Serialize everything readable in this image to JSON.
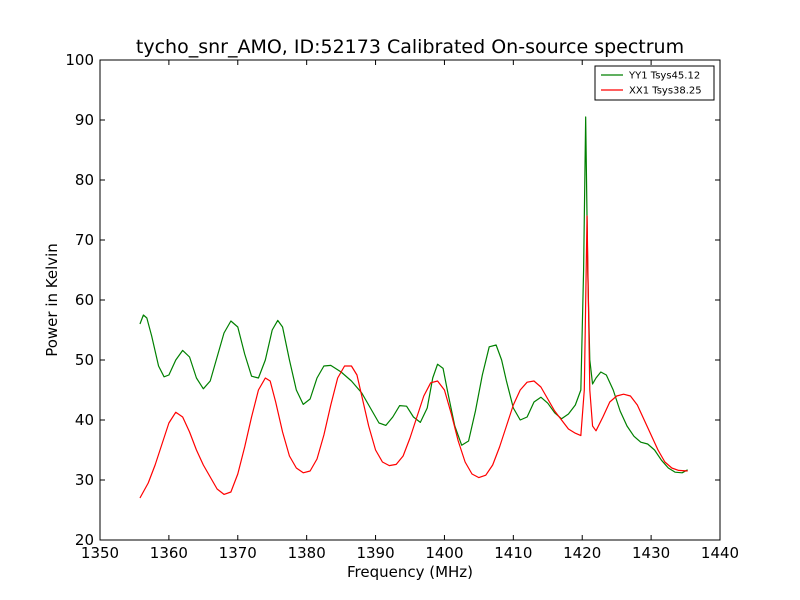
{
  "chart_data": {
    "type": "line",
    "title": "tycho_snr_AMO, ID:52173 Calibrated On-source spectrum",
    "xlabel": "Frequency (MHz)",
    "ylabel": "Power in Kelvin",
    "xlim": [
      1350,
      1440
    ],
    "ylim": [
      20,
      100
    ],
    "xticks": [
      "1350",
      "1360",
      "1370",
      "1380",
      "1390",
      "1400",
      "1410",
      "1420",
      "1430",
      "1440"
    ],
    "yticks": [
      "20",
      "30",
      "40",
      "50",
      "60",
      "70",
      "80",
      "90",
      "100"
    ],
    "grid": false,
    "legend_position": "top-right",
    "series": [
      {
        "name": "YY1 Tsys45.12",
        "color": "#008000",
        "x": [
          1355.8,
          1356.3,
          1356.8,
          1357.5,
          1358.5,
          1359.3,
          1360.0,
          1361.0,
          1362.0,
          1363.0,
          1364.0,
          1365.0,
          1366.0,
          1367.0,
          1368.0,
          1369.0,
          1370.0,
          1371.0,
          1372.0,
          1373.0,
          1374.0,
          1375.0,
          1375.8,
          1376.5,
          1377.5,
          1378.5,
          1379.5,
          1380.5,
          1381.5,
          1382.5,
          1383.5,
          1385.0,
          1386.5,
          1388.0,
          1389.5,
          1390.5,
          1391.5,
          1392.5,
          1393.5,
          1394.5,
          1395.5,
          1396.5,
          1397.5,
          1398.3,
          1399.0,
          1399.8,
          1400.5,
          1401.5,
          1402.5,
          1403.5,
          1404.5,
          1405.5,
          1406.5,
          1407.5,
          1408.3,
          1409.0,
          1410.0,
          1411.0,
          1412.0,
          1413.0,
          1414.0,
          1415.0,
          1416.0,
          1417.0,
          1418.0,
          1419.0,
          1419.8,
          1420.2,
          1420.5,
          1420.8,
          1421.1,
          1421.5,
          1422.0,
          1422.7,
          1423.5,
          1424.5,
          1425.5,
          1426.5,
          1427.5,
          1428.5,
          1429.5,
          1430.5,
          1431.5,
          1432.5,
          1433.5,
          1434.5,
          1435.3
        ],
        "values": [
          56.0,
          57.5,
          57.0,
          54.0,
          49.0,
          47.2,
          47.5,
          50.0,
          51.6,
          50.5,
          47.0,
          45.2,
          46.5,
          50.5,
          54.5,
          56.5,
          55.5,
          51.0,
          47.3,
          47.0,
          50.0,
          55.0,
          56.6,
          55.5,
          50.0,
          45.0,
          42.6,
          43.5,
          47.0,
          49.0,
          49.1,
          48.0,
          46.5,
          44.5,
          41.5,
          39.5,
          39.1,
          40.5,
          42.4,
          42.3,
          40.5,
          39.6,
          42.0,
          47.0,
          49.3,
          48.6,
          44.5,
          39.0,
          35.8,
          36.5,
          41.5,
          47.5,
          52.2,
          52.5,
          50.0,
          46.5,
          42.0,
          40.0,
          40.5,
          43.0,
          43.8,
          42.8,
          41.2,
          40.2,
          41.0,
          42.5,
          45.0,
          65.0,
          90.5,
          65.0,
          50.0,
          46.0,
          47.0,
          48.0,
          47.5,
          45.0,
          41.5,
          39.0,
          37.3,
          36.3,
          36.0,
          35.0,
          33.3,
          32.0,
          31.3,
          31.2,
          31.7
        ]
      },
      {
        "name": "XX1 Tsys38.25",
        "color": "#ff0000",
        "x": [
          1355.8,
          1357.0,
          1358.0,
          1359.0,
          1360.0,
          1361.0,
          1362.0,
          1363.0,
          1364.0,
          1365.0,
          1366.0,
          1367.0,
          1368.0,
          1369.0,
          1370.0,
          1371.0,
          1372.0,
          1373.0,
          1374.0,
          1374.7,
          1375.5,
          1376.5,
          1377.5,
          1378.5,
          1379.5,
          1380.5,
          1381.5,
          1382.5,
          1383.5,
          1384.5,
          1385.5,
          1386.5,
          1387.3,
          1388.0,
          1389.0,
          1390.0,
          1391.0,
          1392.0,
          1393.0,
          1394.0,
          1395.0,
          1396.0,
          1397.0,
          1398.0,
          1399.0,
          1400.0,
          1401.0,
          1402.0,
          1403.0,
          1404.0,
          1405.0,
          1406.0,
          1407.0,
          1408.0,
          1409.0,
          1410.0,
          1411.0,
          1412.0,
          1413.0,
          1414.0,
          1415.0,
          1416.0,
          1417.0,
          1418.0,
          1419.0,
          1419.8,
          1420.3,
          1420.7,
          1421.1,
          1421.5,
          1422.0,
          1423.0,
          1424.0,
          1425.0,
          1426.0,
          1427.0,
          1428.0,
          1429.0,
          1430.0,
          1431.0,
          1432.0,
          1433.0,
          1434.0,
          1435.3
        ],
        "values": [
          27.0,
          29.5,
          32.5,
          36.0,
          39.5,
          41.3,
          40.5,
          38.0,
          35.0,
          32.5,
          30.5,
          28.5,
          27.6,
          28.0,
          31.0,
          35.5,
          40.5,
          45.0,
          47.0,
          46.5,
          43.0,
          38.0,
          34.0,
          32.0,
          31.2,
          31.5,
          33.5,
          37.5,
          42.5,
          47.0,
          49.0,
          49.0,
          47.5,
          44.0,
          39.0,
          35.0,
          33.0,
          32.4,
          32.6,
          34.0,
          37.0,
          40.5,
          44.0,
          46.2,
          46.5,
          45.0,
          41.0,
          36.5,
          33.0,
          31.0,
          30.4,
          30.8,
          32.5,
          35.5,
          39.0,
          42.5,
          45.0,
          46.3,
          46.5,
          45.5,
          43.5,
          41.5,
          40.0,
          38.5,
          37.8,
          37.4,
          45.0,
          74.0,
          45.0,
          39.0,
          38.2,
          40.5,
          43.0,
          44.0,
          44.3,
          44.0,
          42.5,
          40.0,
          37.5,
          35.0,
          33.0,
          32.0,
          31.6,
          31.5
        ]
      }
    ]
  }
}
